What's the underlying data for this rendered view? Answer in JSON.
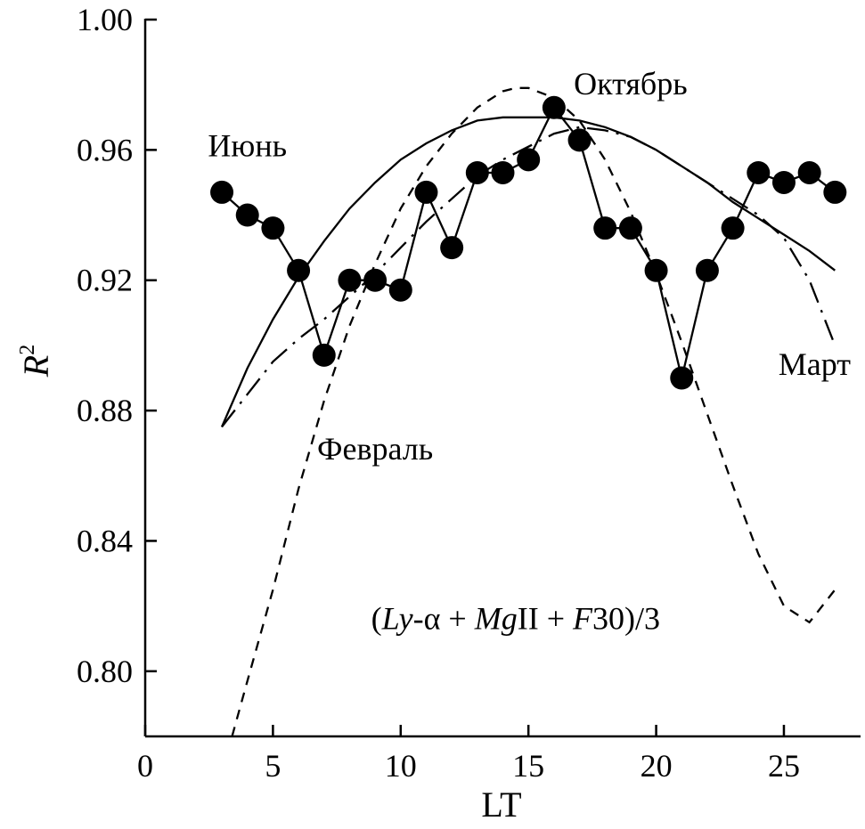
{
  "chart_data": {
    "type": "line",
    "title": "",
    "xlabel": "LT",
    "ylabel_main": "R",
    "ylabel_sup": "2",
    "xlim": [
      0,
      28
    ],
    "ylim": [
      0.78,
      1.0
    ],
    "x_ticks": [
      "0",
      "5",
      "10",
      "15",
      "20",
      "25"
    ],
    "x_tick_values": [
      0,
      5,
      10,
      15,
      20,
      25
    ],
    "y_ticks": [
      "0.80",
      "0.84",
      "0.88",
      "0.92",
      "0.96",
      "1.00"
    ],
    "y_tick_values": [
      0.8,
      0.84,
      0.88,
      0.92,
      0.96,
      1.0
    ],
    "grid": false,
    "points": {
      "x": [
        3,
        4,
        5,
        6,
        7,
        8,
        9,
        10,
        11,
        12,
        13,
        14,
        15,
        16,
        17,
        18,
        19,
        20,
        21,
        22,
        23,
        24,
        25,
        26,
        27
      ],
      "y": [
        0.947,
        0.94,
        0.936,
        0.923,
        0.897,
        0.92,
        0.92,
        0.917,
        0.947,
        0.93,
        0.953,
        0.953,
        0.957,
        0.973,
        0.963,
        0.936,
        0.936,
        0.923,
        0.89,
        0.923,
        0.936,
        0.953,
        0.95,
        0.953,
        0.947
      ],
      "style": "solid line with filled circle markers"
    },
    "curves": [
      {
        "style": "solid",
        "x": [
          3,
          4,
          5,
          6,
          7,
          8,
          9,
          10,
          11,
          12,
          13,
          14,
          15,
          16,
          17,
          18,
          19,
          20,
          21,
          22,
          23,
          24,
          25,
          26,
          27
        ],
        "y": [
          0.875,
          0.893,
          0.908,
          0.921,
          0.932,
          0.942,
          0.95,
          0.957,
          0.962,
          0.966,
          0.969,
          0.97,
          0.97,
          0.97,
          0.969,
          0.967,
          0.964,
          0.96,
          0.955,
          0.95,
          0.944,
          0.939,
          0.934,
          0.929,
          0.923
        ]
      },
      {
        "style": "dashed",
        "x": [
          3.4,
          4,
          5,
          6,
          7,
          8,
          9,
          10,
          11,
          12,
          13,
          14,
          14.5,
          15,
          16,
          17,
          18,
          19,
          20,
          21,
          22,
          23,
          24,
          25,
          26,
          27
        ],
        "y": [
          0.78,
          0.797,
          0.825,
          0.856,
          0.883,
          0.906,
          0.925,
          0.942,
          0.955,
          0.965,
          0.973,
          0.978,
          0.979,
          0.979,
          0.976,
          0.969,
          0.957,
          0.941,
          0.922,
          0.901,
          0.879,
          0.857,
          0.836,
          0.82,
          0.815,
          0.825
        ]
      },
      {
        "style": "dash-dot",
        "x": [
          3,
          4,
          5,
          6,
          7,
          8,
          9,
          10,
          11,
          12,
          13,
          14,
          15,
          16,
          17,
          18,
          19,
          20,
          21,
          22,
          23,
          24,
          25,
          26,
          27
        ],
        "y": [
          0.875,
          0.885,
          0.895,
          0.902,
          0.908,
          0.915,
          0.922,
          0.93,
          0.938,
          0.945,
          0.952,
          0.957,
          0.961,
          0.965,
          0.967,
          0.966,
          0.964,
          0.96,
          0.955,
          0.95,
          0.945,
          0.94,
          0.933,
          0.92,
          0.9
        ]
      }
    ],
    "annotations": [
      {
        "text": "Июнь",
        "x": 4.0,
        "y": 0.958
      },
      {
        "text": "Октябрь",
        "x": 19.0,
        "y": 0.977
      },
      {
        "text": "Март",
        "x": 26.2,
        "y": 0.891
      },
      {
        "text": "Февраль",
        "x": 9.0,
        "y": 0.865
      }
    ],
    "formula": {
      "x": 14.5,
      "y": 0.813,
      "parts": [
        "(",
        "Ly",
        "-α + ",
        "Mg",
        "II + ",
        "F",
        "30)/3"
      ]
    }
  }
}
